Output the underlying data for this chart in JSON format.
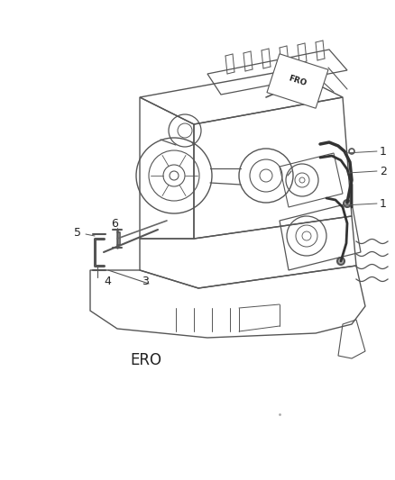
{
  "background_color": "#ffffff",
  "label_ERO": "ERO",
  "label_FRO": "FRO",
  "line_color": "#555555",
  "label_color": "#222222",
  "figsize": [
    4.38,
    5.33
  ],
  "dpi": 100,
  "img_b64": ""
}
